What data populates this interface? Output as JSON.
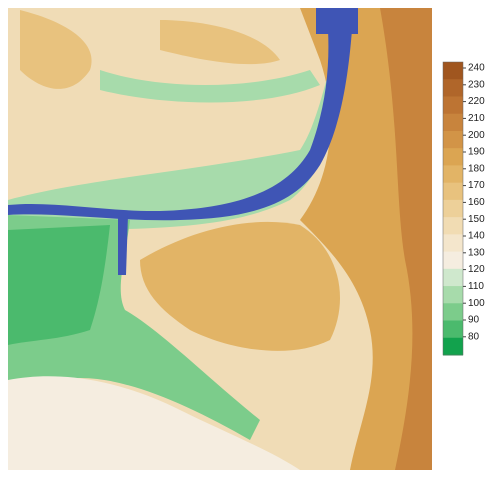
{
  "map": {
    "colorbar": {
      "ticks": [
        240,
        230,
        220,
        210,
        200,
        190,
        180,
        170,
        160,
        150,
        140,
        130,
        120,
        110,
        100,
        90,
        80
      ],
      "colors": [
        "#a0561f",
        "#b0662a",
        "#bd7433",
        "#c8843d",
        "#d29447",
        "#dba552",
        "#e2b466",
        "#e8c27e",
        "#edd099",
        "#f1dcb3",
        "#f4e6cc",
        "#f5ede0",
        "#cfe8cd",
        "#a7dbab",
        "#7ccc8b",
        "#4bba6d",
        "#12a24d"
      ]
    }
  }
}
